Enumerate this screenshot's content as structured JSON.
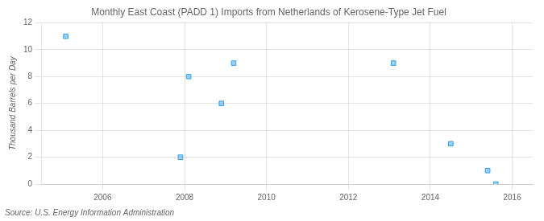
{
  "chart_data": {
    "type": "scatter",
    "title": "Monthly East Coast (PADD 1) Imports from Netherlands of Kerosene-Type Jet Fuel",
    "ylabel": "Thousand Barrels per Day",
    "source": "Source: U.S. Energy Information Administration",
    "x": [
      2005.1,
      2007.9,
      2008.1,
      2008.9,
      2009.2,
      2013.1,
      2014.5,
      2015.4,
      2015.6
    ],
    "values": [
      11,
      2,
      8,
      6,
      9,
      9,
      3,
      1,
      0
    ],
    "marker": "square",
    "xlim": [
      2004.5,
      2016.5
    ],
    "xticks": [
      2006,
      2008,
      2010,
      2012,
      2014,
      2016
    ],
    "ylim": [
      0,
      12
    ],
    "yticks": [
      0,
      2,
      4,
      6,
      8,
      10,
      12
    ],
    "grid": true
  }
}
